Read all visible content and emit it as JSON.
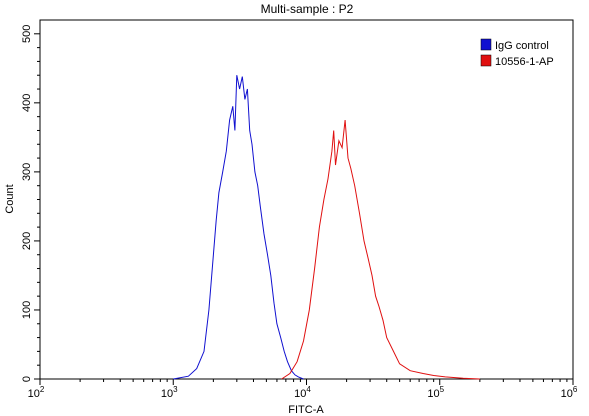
{
  "chart_data": {
    "type": "line",
    "title": "Multi-sample : P2",
    "xlabel": "FITC-A",
    "ylabel": "Count",
    "x_scale": "log",
    "xlim": [
      100,
      1000000
    ],
    "ylim": [
      0,
      520
    ],
    "x_ticks": [
      {
        "value": 100,
        "base": "10",
        "exp": "2"
      },
      {
        "value": 1000,
        "base": "10",
        "exp": "3"
      },
      {
        "value": 10000,
        "base": "10",
        "exp": "4"
      },
      {
        "value": 100000,
        "base": "10",
        "exp": "5"
      },
      {
        "value": 1000000,
        "base": "10",
        "exp": "6"
      }
    ],
    "y_ticks": [
      {
        "value": 0,
        "label": "0"
      },
      {
        "value": 100,
        "label": "100"
      },
      {
        "value": 200,
        "label": "200"
      },
      {
        "value": 300,
        "label": "300"
      },
      {
        "value": 400,
        "label": "400"
      },
      {
        "value": 500,
        "label": "500"
      }
    ],
    "grid": false,
    "legend_position": "top-right",
    "series": [
      {
        "name": "IgG control",
        "color": "#1010d0",
        "x": [
          1000,
          1300,
          1500,
          1700,
          1850,
          2000,
          2100,
          2200,
          2350,
          2500,
          2650,
          2800,
          2900,
          3000,
          3150,
          3300,
          3450,
          3600,
          3750,
          3900,
          4100,
          4300,
          4500,
          4800,
          5100,
          5400,
          5700,
          6000,
          6400,
          6800,
          7200,
          7700,
          8200,
          8700,
          9500
        ],
        "y": [
          0,
          4,
          15,
          40,
          100,
          180,
          230,
          270,
          300,
          330,
          375,
          395,
          360,
          440,
          420,
          438,
          405,
          420,
          360,
          340,
          300,
          280,
          250,
          210,
          180,
          150,
          110,
          80,
          60,
          40,
          25,
          12,
          6,
          3,
          0
        ]
      },
      {
        "name": "10556-1-AP",
        "color": "#e01010",
        "x": [
          6500,
          7500,
          8500,
          9500,
          10500,
          11500,
          12500,
          13500,
          14500,
          15500,
          16000,
          16500,
          17500,
          18500,
          19500,
          20500,
          21500,
          23000,
          25000,
          27000,
          29000,
          31000,
          33000,
          35000,
          37500,
          40000,
          45000,
          50000,
          60000,
          75000,
          90000,
          110000,
          150000,
          200000
        ],
        "y": [
          0,
          8,
          25,
          55,
          100,
          160,
          220,
          260,
          290,
          330,
          360,
          310,
          345,
          335,
          375,
          320,
          305,
          280,
          240,
          200,
          175,
          150,
          120,
          105,
          85,
          60,
          40,
          22,
          12,
          8,
          5,
          3,
          1,
          0
        ]
      }
    ]
  }
}
